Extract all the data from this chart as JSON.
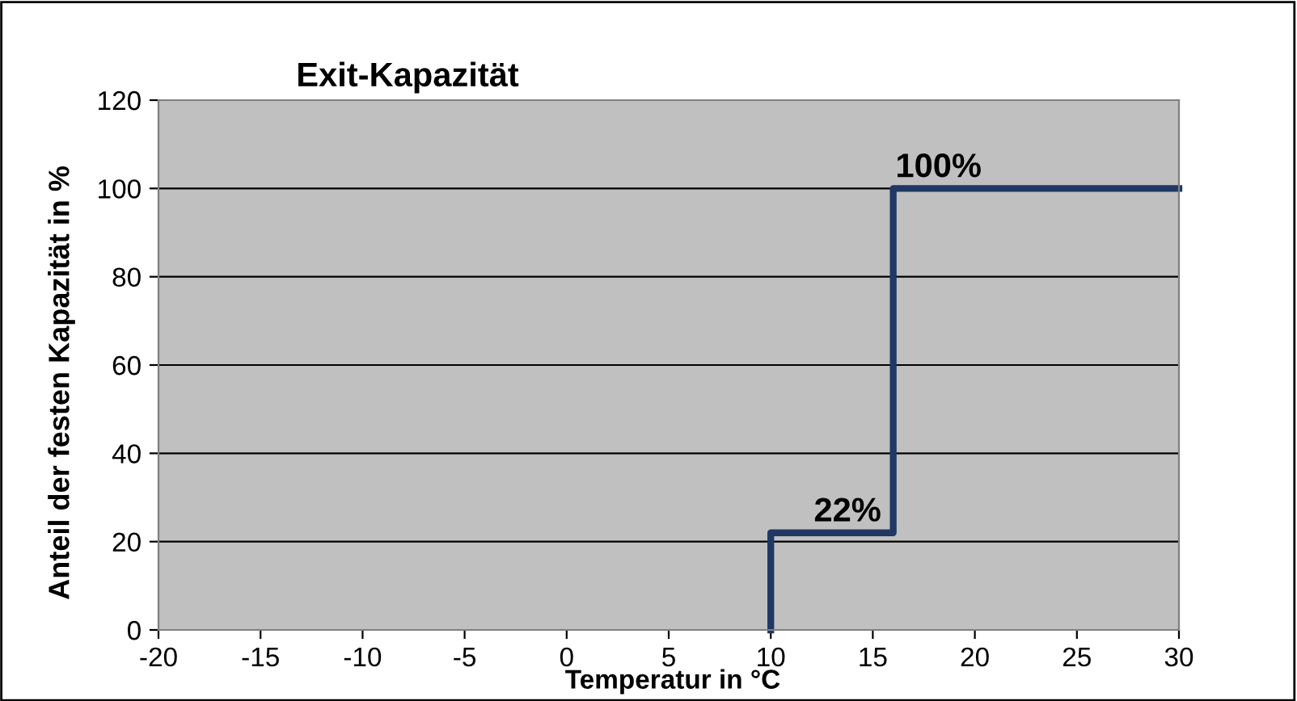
{
  "chart_data": {
    "type": "line",
    "title": "Exit-Kapazität",
    "xlabel": "Temperatur in °C",
    "ylabel": "Anteil der festen Kapazität in %",
    "series": [
      {
        "color": "#1f3864",
        "x": [
          10,
          10,
          16,
          16,
          30
        ],
        "values": [
          0,
          22,
          22,
          100,
          100
        ]
      }
    ],
    "annotations": [
      {
        "text": "22%",
        "x": 12,
        "y": 22
      },
      {
        "text": "100%",
        "x": 16,
        "y": 100
      }
    ],
    "xlim": [
      -20,
      30
    ],
    "xticks": [
      -20,
      -15,
      -10,
      -5,
      0,
      5,
      10,
      15,
      20,
      25,
      30
    ],
    "ylim": [
      0,
      120
    ],
    "yticks": [
      0,
      20,
      40,
      60,
      80,
      100,
      120
    ],
    "grid": "y",
    "marker": "none",
    "line_style": "solid"
  }
}
